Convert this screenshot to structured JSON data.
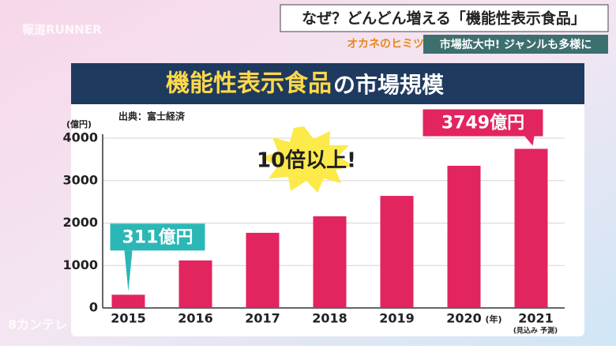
{
  "banner": {
    "headline": "なぜ？どんどん増える「機能性表示食品」",
    "corner": "オカネのヒミツ",
    "subline": "市場拡大中! ジャンルも多様に",
    "watermark": "報道RUNNER",
    "logo": "8カンテレ"
  },
  "chart_data": {
    "type": "bar",
    "title": "機能性表示食品",
    "title_suffix": "の市場規模",
    "source": "出典：富士経済",
    "y_label": "(億円)",
    "x_label": "(年)",
    "note": "(見込み 予測)",
    "annotation": "10倍以上!",
    "categories": [
      "2015",
      "2016",
      "2017",
      "2018",
      "2019",
      "2020",
      "2021"
    ],
    "values": [
      311,
      1120,
      1770,
      2160,
      2640,
      3350,
      3749
    ],
    "value_labels": [
      "311億円",
      null,
      null,
      null,
      null,
      null,
      "3749億円"
    ],
    "color": "#e2245f",
    "ylim": [
      0,
      4000
    ],
    "yticks": [
      0,
      1000,
      2000,
      3000,
      4000
    ],
    "grid": true
  }
}
